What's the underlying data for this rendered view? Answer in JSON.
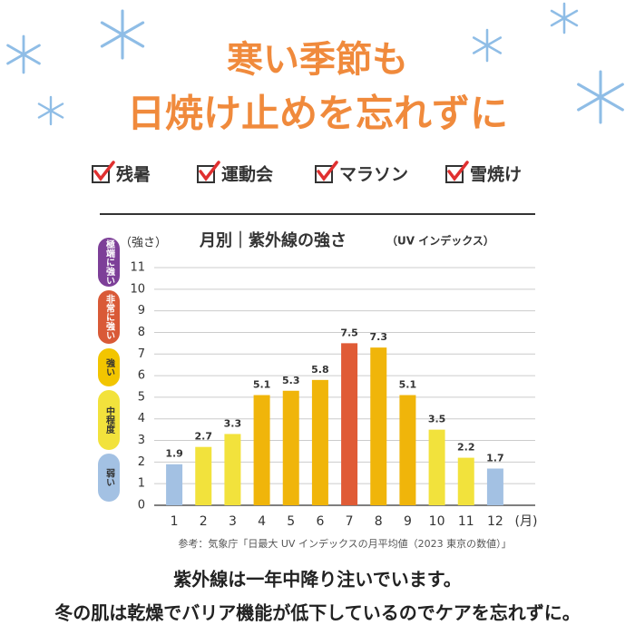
{
  "header": {
    "title_lines": [
      "寒い季節も",
      "日焼け止めを忘れずに"
    ],
    "checks": [
      "残暑",
      "運動会",
      "マラソン",
      "雪焼け"
    ]
  },
  "chart_data": {
    "type": "bar",
    "title": "月別｜紫外線の強さ",
    "subtitle": "（UV インデックス）",
    "y_label": "（強さ）",
    "x_label": "(月)",
    "categories": [
      "1",
      "2",
      "3",
      "4",
      "5",
      "6",
      "7",
      "8",
      "9",
      "10",
      "11",
      "12"
    ],
    "values": [
      1.9,
      2.7,
      3.3,
      5.1,
      5.3,
      5.8,
      7.5,
      7.3,
      5.1,
      3.5,
      2.2,
      1.7
    ],
    "colors": [
      "#a3c1e3",
      "#f2e23c",
      "#f2e23c",
      "#f0b50a",
      "#f0b50a",
      "#f0b50a",
      "#e05b36",
      "#f0b50a",
      "#f0b50a",
      "#f2e23c",
      "#f2e23c",
      "#a3c1e3"
    ],
    "ylim": [
      0,
      11
    ],
    "yticks": [
      0,
      1,
      2,
      3,
      4,
      5,
      6,
      7,
      8,
      9,
      10,
      11
    ],
    "grid": true,
    "levels": [
      {
        "label": "極端に強い",
        "color": "#7d3f98"
      },
      {
        "label": "非常に強い",
        "color": "#d95a37"
      },
      {
        "label": "強い",
        "color": "#f2c500"
      },
      {
        "label": "中程度",
        "color": "#f2e23c"
      },
      {
        "label": "弱い",
        "color": "#a3c1e3"
      }
    ],
    "source": "参考：気象庁「日最大 UV インデックスの月平均値（2023 東京の数値）」"
  },
  "footer": {
    "lines": [
      "紫外線は一年中降り注いでいます。",
      "冬の肌は乾燥でバリア機能が低下しているのでケアを忘れずに。"
    ]
  }
}
